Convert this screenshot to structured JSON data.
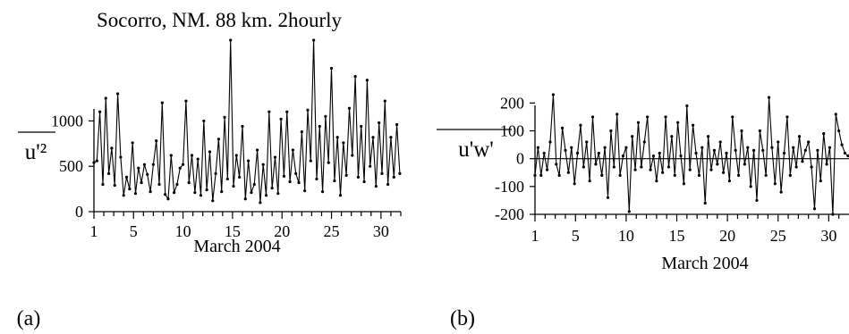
{
  "title": "Socorro, NM.  88 km. 2hourly",
  "chart_data": [
    {
      "id": "a",
      "type": "line",
      "panel_label": "(a)",
      "ylabel": "u'²",
      "xlabel": "March 2004",
      "xlim": [
        1,
        32
      ],
      "ylim": [
        0,
        1900
      ],
      "xticks": [
        1,
        5,
        10,
        15,
        20,
        25,
        30
      ],
      "yticks": [
        0,
        500,
        1000
      ],
      "series": [
        {
          "x": [
            1.0,
            1.3,
            1.6,
            1.9,
            2.2,
            2.5,
            2.8,
            3.1,
            3.4,
            3.7,
            4.0,
            4.3,
            4.6,
            4.9,
            5.2,
            5.5,
            5.8,
            6.1,
            6.4,
            6.7,
            7.0,
            7.3,
            7.6,
            7.9,
            8.2,
            8.5,
            8.8,
            9.1,
            9.4,
            9.7,
            10.0,
            10.3,
            10.6,
            10.9,
            11.2,
            11.5,
            11.8,
            12.1,
            12.4,
            12.7,
            13.0,
            13.3,
            13.6,
            13.9,
            14.2,
            14.5,
            14.8,
            15.1,
            15.4,
            15.7,
            16.0,
            16.3,
            16.6,
            16.9,
            17.2,
            17.5,
            17.8,
            18.1,
            18.4,
            18.7,
            19.0,
            19.3,
            19.6,
            19.9,
            20.2,
            20.5,
            20.8,
            21.1,
            21.4,
            21.7,
            22.0,
            22.3,
            22.6,
            22.9,
            23.2,
            23.5,
            23.8,
            24.1,
            24.4,
            24.7,
            25.0,
            25.3,
            25.6,
            25.9,
            26.2,
            26.5,
            26.8,
            27.1,
            27.4,
            27.7,
            28.0,
            28.3,
            28.6,
            28.9,
            29.2,
            29.5,
            29.8,
            30.1,
            30.4,
            30.7,
            31.0,
            31.3,
            31.6,
            31.9
          ],
          "y": [
            540,
            560,
            1100,
            300,
            1250,
            420,
            700,
            290,
            1300,
            600,
            180,
            380,
            250,
            760,
            200,
            480,
            320,
            520,
            410,
            220,
            520,
            780,
            300,
            1200,
            190,
            140,
            620,
            210,
            300,
            480,
            520,
            1220,
            320,
            620,
            210,
            580,
            180,
            1000,
            240,
            660,
            120,
            420,
            800,
            220,
            1040,
            360,
            1890,
            280,
            620,
            380,
            940,
            140,
            560,
            210,
            300,
            680,
            100,
            520,
            180,
            1100,
            260,
            600,
            200,
            1020,
            390,
            1100,
            330,
            680,
            420,
            320,
            880,
            230,
            1120,
            560,
            1890,
            360,
            940,
            220,
            1050,
            540,
            1580,
            340,
            820,
            180,
            760,
            400,
            1140,
            620,
            1490,
            380,
            940,
            330,
            1450,
            500,
            820,
            280,
            980,
            420,
            1220,
            300,
            820,
            380,
            960,
            420
          ]
        }
      ]
    },
    {
      "id": "b",
      "type": "line",
      "panel_label": "(b)",
      "ylabel": "u'w'",
      "xlabel": "March 2004",
      "xlim": [
        1,
        32
      ],
      "ylim": [
        -200,
        230
      ],
      "xticks": [
        1,
        5,
        10,
        15,
        20,
        25,
        30
      ],
      "yticks": [
        -200,
        -100,
        0,
        100,
        200
      ],
      "series": [
        {
          "x": [
            1.0,
            1.3,
            1.6,
            1.9,
            2.2,
            2.5,
            2.8,
            3.1,
            3.4,
            3.7,
            4.0,
            4.3,
            4.6,
            4.9,
            5.2,
            5.5,
            5.8,
            6.1,
            6.4,
            6.7,
            7.0,
            7.3,
            7.6,
            7.9,
            8.2,
            8.5,
            8.8,
            9.1,
            9.4,
            9.7,
            10.0,
            10.3,
            10.6,
            10.9,
            11.2,
            11.5,
            11.8,
            12.1,
            12.4,
            12.7,
            13.0,
            13.3,
            13.6,
            13.9,
            14.2,
            14.5,
            14.8,
            15.1,
            15.4,
            15.7,
            16.0,
            16.3,
            16.6,
            16.9,
            17.2,
            17.5,
            17.8,
            18.1,
            18.4,
            18.7,
            19.0,
            19.3,
            19.6,
            19.9,
            20.2,
            20.5,
            20.8,
            21.1,
            21.4,
            21.7,
            22.0,
            22.3,
            22.6,
            22.9,
            23.2,
            23.5,
            23.8,
            24.1,
            24.4,
            24.7,
            25.0,
            25.3,
            25.6,
            25.9,
            26.2,
            26.5,
            26.8,
            27.1,
            27.4,
            27.7,
            28.0,
            28.3,
            28.6,
            28.9,
            29.2,
            29.5,
            29.8,
            30.1,
            30.4,
            30.7,
            31.0,
            31.3,
            31.6,
            31.9
          ],
          "y": [
            -60,
            40,
            -60,
            20,
            -40,
            60,
            230,
            -20,
            -60,
            110,
            30,
            -50,
            40,
            -90,
            20,
            120,
            -30,
            60,
            -80,
            150,
            -20,
            20,
            -60,
            40,
            -140,
            100,
            -30,
            160,
            -60,
            10,
            40,
            -190,
            80,
            -40,
            130,
            -30,
            60,
            150,
            -40,
            10,
            -80,
            20,
            -50,
            150,
            -30,
            80,
            -60,
            130,
            10,
            -90,
            190,
            -40,
            120,
            20,
            -60,
            40,
            -160,
            80,
            -40,
            30,
            -20,
            60,
            -50,
            20,
            -80,
            150,
            30,
            -60,
            100,
            -20,
            40,
            -100,
            30,
            -150,
            100,
            30,
            -60,
            220,
            40,
            -90,
            60,
            -120,
            20,
            150,
            -60,
            40,
            -30,
            80,
            -10,
            30,
            60,
            -30,
            -180,
            30,
            -80,
            90,
            -20,
            40,
            -200,
            160,
            100,
            50,
            20,
            10
          ]
        }
      ]
    }
  ]
}
